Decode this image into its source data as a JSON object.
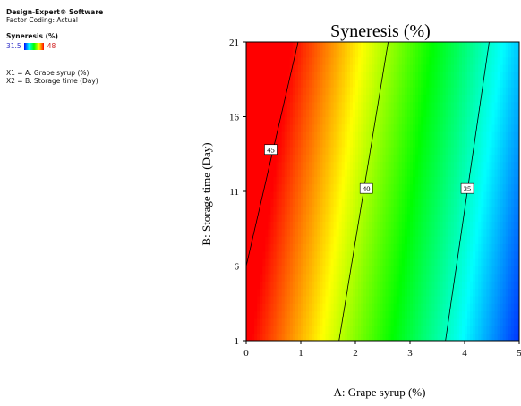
{
  "sidebar": {
    "software": "Design-Expert® Software",
    "coding": "Factor Coding: Actual",
    "response_label": "Syneresis (%)",
    "legend_min": "31.5",
    "legend_max": "48",
    "x1_def": "X1 = A: Grape syrup (%)",
    "x2_def": "X2 = B: Storage time (Day)"
  },
  "colors": {
    "low": "#0000ff",
    "high": "#ff0000"
  },
  "chart_data": {
    "type": "contour",
    "title": "Syneresis (%)",
    "xlabel": "A: Grape syrup (%)",
    "ylabel": "B: Storage time (Day)",
    "xlim": [
      0,
      5
    ],
    "ylim": [
      1,
      21
    ],
    "x_ticks": [
      "0",
      "1",
      "2",
      "3",
      "4",
      "5"
    ],
    "y_ticks": [
      "1",
      "6",
      "11",
      "16",
      "21"
    ],
    "color_range": [
      31.5,
      48
    ],
    "contours": [
      {
        "label": "45",
        "points": [
          [
            0,
            6
          ],
          [
            0.95,
            21
          ]
        ],
        "label_pos": [
          0.45,
          13.8
        ]
      },
      {
        "label": "40",
        "points": [
          [
            1.7,
            1
          ],
          [
            2.6,
            21
          ]
        ],
        "label_pos": [
          2.2,
          11.2
        ]
      },
      {
        "label": "35",
        "points": [
          [
            3.65,
            1
          ],
          [
            4.45,
            21
          ]
        ],
        "label_pos": [
          4.05,
          11.2
        ]
      }
    ]
  }
}
